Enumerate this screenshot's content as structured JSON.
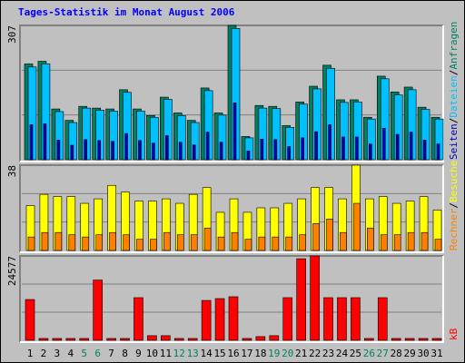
{
  "chart_data": [
    {
      "type": "bar",
      "title": "Tages-Statistik im Monat August 2006",
      "ylim": [
        0,
        307
      ],
      "yticks": [
        307
      ],
      "legend_separator": "/",
      "series": [
        {
          "name": "Anfragen",
          "color": "#008060",
          "values": [
            219,
            225,
            116,
            90,
            122,
            118,
            116,
            160,
            116,
            101,
            143,
            107,
            90,
            164,
            107,
            307,
            53,
            124,
            122,
            78,
            132,
            168,
            216,
            137,
            137,
            97,
            191,
            155,
            166,
            120,
            97
          ]
        },
        {
          "name": "Dateien",
          "color": "#00c0ff",
          "values": [
            212,
            219,
            110,
            85,
            118,
            113,
            111,
            154,
            111,
            97,
            138,
            101,
            85,
            158,
            102,
            300,
            50,
            118,
            117,
            74,
            127,
            162,
            209,
            131,
            132,
            93,
            185,
            148,
            160,
            115,
            93
          ]
        },
        {
          "name": "Seiten",
          "color": "#0000c0",
          "values": [
            80,
            82,
            45,
            33,
            46,
            44,
            42,
            60,
            44,
            38,
            55,
            40,
            34,
            63,
            40,
            130,
            20,
            47,
            46,
            30,
            50,
            64,
            80,
            52,
            52,
            36,
            72,
            58,
            63,
            45,
            36
          ]
        }
      ]
    },
    {
      "type": "bar",
      "ylim": [
        0,
        38
      ],
      "yticks": [
        38
      ],
      "legend_separator": "/",
      "series": [
        {
          "name": "Besuche",
          "color": "#ffff00",
          "values": [
            20,
            25,
            24,
            24,
            21,
            23,
            29,
            26,
            22,
            22,
            23,
            21,
            25,
            28,
            17,
            23,
            17,
            19,
            19,
            21,
            23,
            28,
            28,
            23,
            38,
            23,
            24,
            21,
            22,
            24,
            18
          ]
        },
        {
          "name": "Rechner",
          "color": "#ff8000",
          "values": [
            6,
            8,
            8,
            7,
            6,
            7,
            8,
            7,
            5,
            5,
            8,
            7,
            7,
            10,
            6,
            8,
            5,
            6,
            6,
            6,
            7,
            12,
            14,
            8,
            21,
            10,
            7,
            7,
            8,
            8,
            5
          ]
        }
      ]
    },
    {
      "type": "bar",
      "ylim": [
        0,
        24577
      ],
      "yticks": [
        24577
      ],
      "categories": [
        "1",
        "2",
        "3",
        "4",
        "5",
        "6",
        "7",
        "8",
        "9",
        "10",
        "11",
        "12",
        "13",
        "14",
        "15",
        "16",
        "17",
        "18",
        "19",
        "20",
        "21",
        "22",
        "23",
        "24",
        "25",
        "26",
        "27",
        "28",
        "29",
        "30",
        "31"
      ],
      "highlight": [
        4,
        5,
        11,
        12,
        18,
        19,
        25,
        26
      ],
      "highlight_color": "#008060",
      "series": [
        {
          "name": "kB",
          "color": "#ff0000",
          "values": [
            11880,
            540,
            540,
            540,
            540,
            17550,
            540,
            540,
            12420,
            1350,
            1350,
            540,
            540,
            11610,
            12150,
            12690,
            540,
            1080,
            1350,
            12420,
            23760,
            24577,
            12420,
            12420,
            12420,
            540,
            12420,
            540,
            540,
            540,
            540
          ]
        }
      ]
    }
  ]
}
